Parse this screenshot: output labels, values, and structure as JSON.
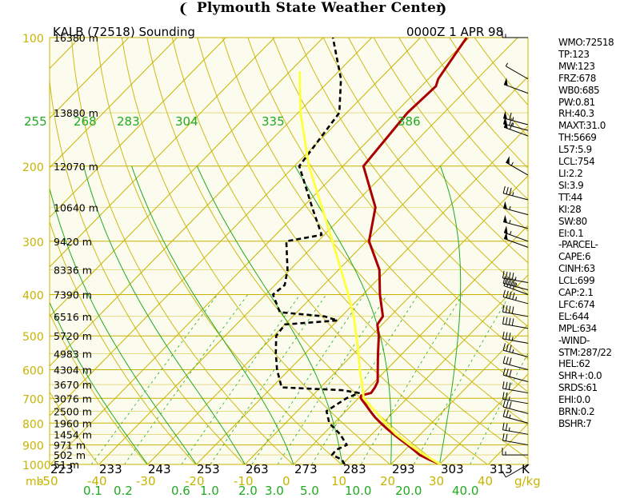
{
  "header": {
    "title": "Plymouth State Weather Center"
  },
  "chart_data": {
    "type": "line",
    "title": "KALB (72518) Sounding",
    "time_label": "0000Z  1 APR 98",
    "pressure_axis": {
      "ticks": [
        100,
        200,
        300,
        400,
        500,
        600,
        700,
        800,
        900,
        1000
      ],
      "unit_label": "mb"
    },
    "height_labels": [
      {
        "p": 100,
        "label": "16380 m"
      },
      {
        "p": 150,
        "label": "13880 m"
      },
      {
        "p": 200,
        "label": "12070 m"
      },
      {
        "p": 250,
        "label": "10640 m"
      },
      {
        "p": 300,
        "label": "9420 m"
      },
      {
        "p": 350,
        "label": "8336 m"
      },
      {
        "p": 400,
        "label": "7390 m"
      },
      {
        "p": 450,
        "label": "6516 m"
      },
      {
        "p": 500,
        "label": "5720 m"
      },
      {
        "p": 550,
        "label": "4983 m"
      },
      {
        "p": 600,
        "label": "4304 m"
      },
      {
        "p": 650,
        "label": "3670 m"
      },
      {
        "p": 700,
        "label": "3076 m"
      },
      {
        "p": 750,
        "label": "2500 m"
      },
      {
        "p": 800,
        "label": "1960 m"
      },
      {
        "p": 850,
        "label": "1454 m"
      },
      {
        "p": 900,
        "label": "971 m"
      },
      {
        "p": 950,
        "label": "502 m"
      },
      {
        "p": 1000,
        "label": "51 m"
      }
    ],
    "temp_axis": {
      "ticks": [
        -50,
        -40,
        -30,
        -20,
        -10,
        0,
        10,
        20,
        30,
        40
      ],
      "labels": [
        "-50",
        "-40",
        "-30",
        "-20",
        "-10",
        "0",
        "10",
        "20",
        "30",
        "40"
      ]
    },
    "theta_labels": [
      "223",
      "233",
      "243",
      "253",
      "263",
      "273",
      "283",
      "293",
      "303",
      "313"
    ],
    "theta_units": "K",
    "thetae_labels": [
      "255",
      "268",
      "283",
      "304",
      "335",
      "386"
    ],
    "mixing_ratio_labels": [
      "0.1",
      "0.2",
      "0.6",
      "1.0",
      "2.0",
      "3.0",
      "5.0",
      "10.0",
      "20.0",
      "40.0"
    ],
    "mixing_ratio_units": "g/kg",
    "series": [
      {
        "name": "",
        "color": "#aa0000",
        "style": "solid",
        "points": [
          {
            "p": 1000,
            "t": 30.2
          },
          {
            "p": 975,
            "t": 27.0
          },
          {
            "p": 950,
            "t": 24.0
          },
          {
            "p": 925,
            "t": 21.8
          },
          {
            "p": 900,
            "t": 19.5
          },
          {
            "p": 875,
            "t": 17.0
          },
          {
            "p": 850,
            "t": 14.5
          },
          {
            "p": 825,
            "t": 12.0
          },
          {
            "p": 800,
            "t": 9.6
          },
          {
            "p": 775,
            "t": 7.2
          },
          {
            "p": 750,
            "t": 5.0
          },
          {
            "p": 725,
            "t": 2.8
          },
          {
            "p": 700,
            "t": 0.5
          },
          {
            "p": 690,
            "t": 0.0
          },
          {
            "p": 680,
            "t": 1.5
          },
          {
            "p": 660,
            "t": 1.2
          },
          {
            "p": 640,
            "t": 0.6
          },
          {
            "p": 600,
            "t": -1.8
          },
          {
            "p": 550,
            "t": -5.0
          },
          {
            "p": 500,
            "t": -8.4
          },
          {
            "p": 470,
            "t": -11.0
          },
          {
            "p": 450,
            "t": -11.5
          },
          {
            "p": 400,
            "t": -16.5
          },
          {
            "p": 350,
            "t": -21.6
          },
          {
            "p": 300,
            "t": -29.5
          },
          {
            "p": 250,
            "t": -35.0
          },
          {
            "p": 200,
            "t": -45.8
          },
          {
            "p": 150,
            "t": -47.5
          },
          {
            "p": 130,
            "t": -47.0
          },
          {
            "p": 125,
            "t": -48.0
          },
          {
            "p": 100,
            "t": -50.5
          }
        ]
      },
      {
        "name": "",
        "color": "#000000",
        "style": "dashed",
        "points": [
          {
            "p": 1000,
            "t": 10.5
          },
          {
            "p": 975,
            "t": 9.0
          },
          {
            "p": 950,
            "t": 6.0
          },
          {
            "p": 925,
            "t": 5.8
          },
          {
            "p": 900,
            "t": 7.0
          },
          {
            "p": 850,
            "t": 3.5
          },
          {
            "p": 800,
            "t": -1.0
          },
          {
            "p": 750,
            "t": -4.0
          },
          {
            "p": 700,
            "t": -2.5
          },
          {
            "p": 680,
            "t": -1.0
          },
          {
            "p": 670,
            "t": -5.0
          },
          {
            "p": 660,
            "t": -18.0
          },
          {
            "p": 600,
            "t": -22.5
          },
          {
            "p": 550,
            "t": -26.0
          },
          {
            "p": 500,
            "t": -29.5
          },
          {
            "p": 470,
            "t": -30.0
          },
          {
            "p": 460,
            "t": -20.0
          },
          {
            "p": 450,
            "t": -23.5
          },
          {
            "p": 440,
            "t": -33.5
          },
          {
            "p": 400,
            "t": -38.5
          },
          {
            "p": 380,
            "t": -38.0
          },
          {
            "p": 350,
            "t": -40.5
          },
          {
            "p": 300,
            "t": -46.5
          },
          {
            "p": 290,
            "t": -40.5
          },
          {
            "p": 250,
            "t": -48.0
          },
          {
            "p": 200,
            "t": -59.0
          },
          {
            "p": 150,
            "t": -61.5
          },
          {
            "p": 125,
            "t": -68.0
          },
          {
            "p": 100,
            "t": -78.0
          }
        ]
      },
      {
        "name": "",
        "color": "#ffff44",
        "style": "solid",
        "points": [
          {
            "p": 1000,
            "t": 30.2
          },
          {
            "p": 950,
            "t": 25.0
          },
          {
            "p": 900,
            "t": 20.0
          },
          {
            "p": 850,
            "t": 15.0
          },
          {
            "p": 800,
            "t": 10.5
          },
          {
            "p": 750,
            "t": 6.0
          },
          {
            "p": 699,
            "t": 1.0
          },
          {
            "p": 650,
            "t": -2.0
          },
          {
            "p": 600,
            "t": -5.5
          },
          {
            "p": 550,
            "t": -9.0
          },
          {
            "p": 500,
            "t": -13.0
          },
          {
            "p": 450,
            "t": -17.5
          },
          {
            "p": 400,
            "t": -23.0
          },
          {
            "p": 350,
            "t": -29.5
          },
          {
            "p": 300,
            "t": -37.0
          },
          {
            "p": 250,
            "t": -46.0
          },
          {
            "p": 200,
            "t": -57.0
          },
          {
            "p": 150,
            "t": -69.5
          },
          {
            "p": 120,
            "t": -78.0
          }
        ]
      }
    ],
    "wind_barbs": [
      {
        "p": 100,
        "dir": 270,
        "spd": 15
      },
      {
        "p": 125,
        "dir": 300,
        "spd": 5
      },
      {
        "p": 135,
        "dir": 290,
        "spd": 50
      },
      {
        "p": 160,
        "dir": 285,
        "spd": 65
      },
      {
        "p": 165,
        "dir": 285,
        "spd": 65
      },
      {
        "p": 170,
        "dir": 290,
        "spd": 60
      },
      {
        "p": 210,
        "dir": 300,
        "spd": 55
      },
      {
        "p": 240,
        "dir": 285,
        "spd": 35
      },
      {
        "p": 260,
        "dir": 285,
        "spd": 55
      },
      {
        "p": 280,
        "dir": 285,
        "spd": 55
      },
      {
        "p": 300,
        "dir": 290,
        "spd": 55
      },
      {
        "p": 310,
        "dir": 290,
        "spd": 50
      },
      {
        "p": 375,
        "dir": 280,
        "spd": 45
      },
      {
        "p": 390,
        "dir": 285,
        "spd": 45
      },
      {
        "p": 400,
        "dir": 290,
        "spd": 40
      },
      {
        "p": 420,
        "dir": 285,
        "spd": 45
      },
      {
        "p": 450,
        "dir": 280,
        "spd": 40
      },
      {
        "p": 480,
        "dir": 280,
        "spd": 40
      },
      {
        "p": 520,
        "dir": 280,
        "spd": 35
      },
      {
        "p": 560,
        "dir": 285,
        "spd": 35
      },
      {
        "p": 600,
        "dir": 285,
        "spd": 30
      },
      {
        "p": 640,
        "dir": 285,
        "spd": 30
      },
      {
        "p": 680,
        "dir": 280,
        "spd": 30
      },
      {
        "p": 720,
        "dir": 280,
        "spd": 25
      },
      {
        "p": 760,
        "dir": 285,
        "spd": 30
      },
      {
        "p": 800,
        "dir": 285,
        "spd": 25
      },
      {
        "p": 850,
        "dir": 280,
        "spd": 25
      },
      {
        "p": 900,
        "dir": 280,
        "spd": 20
      },
      {
        "p": 950,
        "dir": 270,
        "spd": 15
      },
      {
        "p": 1000,
        "dir": 240,
        "spd": 10
      }
    ]
  },
  "indices": [
    "WMO:72518",
    "TP:123",
    "MW:123",
    "FRZ:678",
    "WB0:685",
    "PW:0.81",
    "RH:40.3",
    "MAXT:31.0",
    "TH:5669",
    "L57:5.9",
    "LCL:754",
    "LI:2.2",
    "SI:3.9",
    "TT:44",
    "KI:28",
    "SW:80",
    "EI:0.1",
    "-PARCEL-",
    "CAPE:6",
    "CINH:63",
    "LCL:699",
    "CAP:2.1",
    "LFC:674",
    "EL:644",
    "MPL:634",
    "-WIND-",
    "STM:287/22",
    "HEL:62",
    "SHR+:0.0",
    "SRDS:61",
    "EHI:0.0",
    "BRN:0.2",
    "BSHR:7"
  ],
  "colors": {
    "frame": "#c8b400",
    "grid_bg": "#fbfbee",
    "temperature": "#aa0000",
    "dewpoint": "#000000",
    "parcel": "#ffff44",
    "adiabat": "#22aa22",
    "axis_text_left": "#c8b400",
    "axis_text_green": "#22aa22"
  }
}
